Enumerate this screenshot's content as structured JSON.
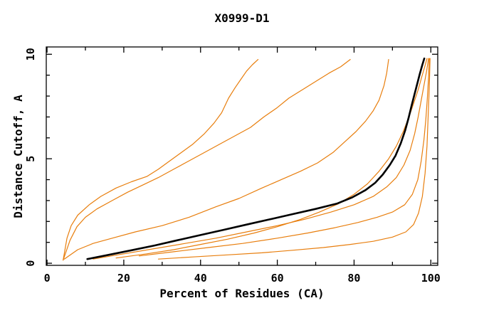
{
  "chart_data": {
    "type": "line",
    "title": "X0999-D1",
    "xlabel": "Percent of Residues (CA)",
    "ylabel": "Distance Cutoff, A",
    "xlim": [
      -0.2,
      101.8
    ],
    "ylim": [
      -0.1,
      10.35
    ],
    "xticks": {
      "major": [
        0,
        20,
        40,
        60,
        80,
        100
      ],
      "minor": [
        10,
        30,
        50,
        70,
        90
      ]
    },
    "yticks": {
      "major": [
        0,
        5,
        10
      ],
      "minor": [
        1,
        2,
        3,
        4,
        6,
        7,
        8,
        9
      ]
    },
    "grid": false,
    "legend": null,
    "colors": {
      "prediction": "#e87e0d",
      "reference": "#000000",
      "frame": "#000000"
    },
    "series": [
      {
        "name": "orange-1",
        "color_role": "prediction",
        "width": 1.2,
        "points": [
          [
            4.2,
            0.15
          ],
          [
            5.2,
            1.2
          ],
          [
            6.3,
            1.8
          ],
          [
            8,
            2.3
          ],
          [
            11,
            2.8
          ],
          [
            14,
            3.2
          ],
          [
            18,
            3.6
          ],
          [
            22,
            3.9
          ],
          [
            26,
            4.15
          ],
          [
            29,
            4.5
          ],
          [
            32,
            4.9
          ],
          [
            35,
            5.3
          ],
          [
            38,
            5.7
          ],
          [
            41,
            6.2
          ],
          [
            43.5,
            6.7
          ],
          [
            45.5,
            7.2
          ],
          [
            47.3,
            7.9
          ],
          [
            49,
            8.4
          ],
          [
            50.5,
            8.8
          ],
          [
            52,
            9.2
          ],
          [
            53.5,
            9.5
          ],
          [
            55,
            9.75
          ]
        ]
      },
      {
        "name": "orange-2",
        "color_role": "prediction",
        "width": 1.2,
        "points": [
          [
            4.2,
            0.15
          ],
          [
            6,
            1.1
          ],
          [
            7.8,
            1.75
          ],
          [
            10,
            2.2
          ],
          [
            13,
            2.6
          ],
          [
            17,
            3.0
          ],
          [
            21,
            3.4
          ],
          [
            25,
            3.75
          ],
          [
            29,
            4.1
          ],
          [
            33,
            4.5
          ],
          [
            37,
            4.9
          ],
          [
            41,
            5.3
          ],
          [
            45,
            5.7
          ],
          [
            49,
            6.1
          ],
          [
            53,
            6.5
          ],
          [
            56.5,
            7.0
          ],
          [
            60,
            7.45
          ],
          [
            63,
            7.9
          ],
          [
            66.5,
            8.3
          ],
          [
            70,
            8.7
          ],
          [
            73.5,
            9.1
          ],
          [
            76.5,
            9.4
          ],
          [
            79,
            9.75
          ]
        ]
      },
      {
        "name": "orange-3",
        "color_role": "prediction",
        "width": 1.2,
        "points": [
          [
            4.5,
            0.2
          ],
          [
            8,
            0.65
          ],
          [
            12,
            0.95
          ],
          [
            17,
            1.2
          ],
          [
            23,
            1.5
          ],
          [
            30,
            1.8
          ],
          [
            37,
            2.2
          ],
          [
            44,
            2.7
          ],
          [
            50,
            3.1
          ],
          [
            56,
            3.6
          ],
          [
            61,
            4.0
          ],
          [
            66,
            4.4
          ],
          [
            70.5,
            4.8
          ],
          [
            74.5,
            5.3
          ],
          [
            77.5,
            5.8
          ],
          [
            80.5,
            6.3
          ],
          [
            83,
            6.8
          ],
          [
            85,
            7.3
          ],
          [
            86.5,
            7.8
          ],
          [
            87.8,
            8.5
          ],
          [
            88.5,
            9.1
          ],
          [
            89,
            9.75
          ]
        ]
      },
      {
        "name": "orange-4",
        "color_role": "prediction",
        "width": 1.2,
        "points": [
          [
            18,
            0.25
          ],
          [
            26,
            0.45
          ],
          [
            33,
            0.65
          ],
          [
            40,
            0.9
          ],
          [
            47,
            1.15
          ],
          [
            54,
            1.45
          ],
          [
            60,
            1.75
          ],
          [
            66,
            2.1
          ],
          [
            71,
            2.45
          ],
          [
            76,
            2.85
          ],
          [
            80,
            3.3
          ],
          [
            83.5,
            3.8
          ],
          [
            86.5,
            4.4
          ],
          [
            89,
            5.0
          ],
          [
            91,
            5.6
          ],
          [
            92.8,
            6.3
          ],
          [
            94.3,
            7.0
          ],
          [
            95.6,
            7.7
          ],
          [
            96.7,
            8.3
          ],
          [
            97.6,
            8.9
          ],
          [
            98.4,
            9.4
          ],
          [
            99,
            9.8
          ]
        ]
      },
      {
        "name": "orange-5",
        "color_role": "prediction",
        "width": 1.2,
        "points": [
          [
            12,
            0.2
          ],
          [
            20,
            0.45
          ],
          [
            28,
            0.7
          ],
          [
            36,
            0.95
          ],
          [
            44,
            1.2
          ],
          [
            52,
            1.5
          ],
          [
            60,
            1.8
          ],
          [
            67,
            2.1
          ],
          [
            74,
            2.45
          ],
          [
            80,
            2.8
          ],
          [
            85,
            3.2
          ],
          [
            88.5,
            3.65
          ],
          [
            91,
            4.1
          ],
          [
            93,
            4.7
          ],
          [
            94.6,
            5.4
          ],
          [
            95.8,
            6.2
          ],
          [
            96.7,
            7.0
          ],
          [
            97.5,
            7.8
          ],
          [
            98.2,
            8.5
          ],
          [
            98.9,
            9.2
          ],
          [
            99.4,
            9.8
          ]
        ]
      },
      {
        "name": "orange-6",
        "color_role": "prediction",
        "width": 1.2,
        "points": [
          [
            24,
            0.35
          ],
          [
            33,
            0.55
          ],
          [
            42,
            0.75
          ],
          [
            51,
            0.95
          ],
          [
            60,
            1.2
          ],
          [
            68,
            1.45
          ],
          [
            75,
            1.7
          ],
          [
            81,
            1.95
          ],
          [
            86,
            2.2
          ],
          [
            90,
            2.45
          ],
          [
            93.2,
            2.8
          ],
          [
            95.2,
            3.3
          ],
          [
            96.6,
            4.0
          ],
          [
            97.5,
            4.9
          ],
          [
            98.2,
            5.9
          ],
          [
            98.7,
            6.9
          ],
          [
            99.1,
            7.9
          ],
          [
            99.4,
            8.9
          ],
          [
            99.6,
            9.8
          ]
        ]
      },
      {
        "name": "orange-7",
        "color_role": "prediction",
        "width": 1.2,
        "points": [
          [
            29,
            0.2
          ],
          [
            38,
            0.3
          ],
          [
            47,
            0.4
          ],
          [
            56,
            0.5
          ],
          [
            64,
            0.62
          ],
          [
            72,
            0.75
          ],
          [
            79,
            0.9
          ],
          [
            85,
            1.05
          ],
          [
            90,
            1.25
          ],
          [
            93.5,
            1.5
          ],
          [
            95.5,
            1.85
          ],
          [
            96.8,
            2.4
          ],
          [
            97.8,
            3.2
          ],
          [
            98.5,
            4.3
          ],
          [
            99,
            5.6
          ],
          [
            99.3,
            7.0
          ],
          [
            99.6,
            8.4
          ],
          [
            99.8,
            9.8
          ]
        ]
      },
      {
        "name": "black-main",
        "color_role": "reference",
        "width": 2.6,
        "points": [
          [
            10.5,
            0.2
          ],
          [
            16,
            0.4
          ],
          [
            22,
            0.62
          ],
          [
            28,
            0.85
          ],
          [
            34,
            1.1
          ],
          [
            40,
            1.35
          ],
          [
            46,
            1.6
          ],
          [
            52,
            1.85
          ],
          [
            58,
            2.1
          ],
          [
            64,
            2.35
          ],
          [
            70,
            2.6
          ],
          [
            75.5,
            2.85
          ],
          [
            79.5,
            3.15
          ],
          [
            83,
            3.5
          ],
          [
            85.5,
            3.85
          ],
          [
            87.5,
            4.25
          ],
          [
            89.3,
            4.7
          ],
          [
            90.8,
            5.15
          ],
          [
            92.2,
            5.75
          ],
          [
            93.3,
            6.35
          ],
          [
            94.2,
            6.95
          ],
          [
            95,
            7.55
          ],
          [
            95.7,
            8.05
          ],
          [
            96.4,
            8.55
          ],
          [
            97.1,
            9.05
          ],
          [
            97.8,
            9.5
          ],
          [
            98.3,
            9.8
          ]
        ]
      }
    ]
  }
}
